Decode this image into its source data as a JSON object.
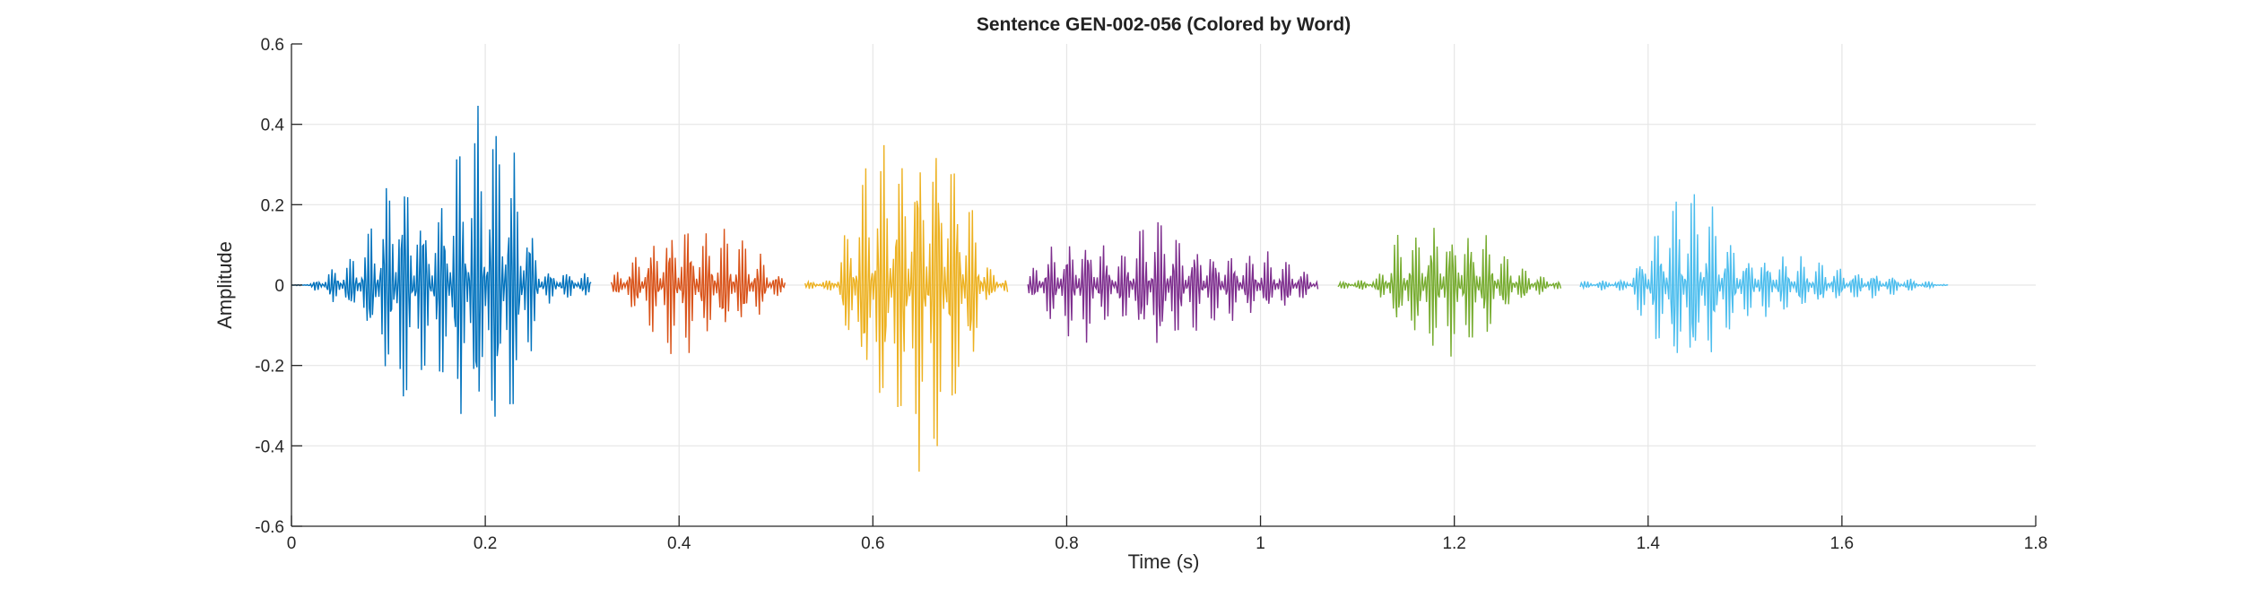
{
  "chart_data": {
    "type": "line",
    "title": "Sentence GEN-002-056 (Colored by Word)",
    "xlabel": "Time (s)",
    "ylabel": "Amplitude",
    "xlim": [
      0,
      1.8
    ],
    "ylim": [
      -0.6,
      0.6
    ],
    "xticks": [
      0,
      0.2,
      0.4,
      0.6,
      0.8,
      1,
      1.2,
      1.4,
      1.6,
      1.8
    ],
    "xtick_labels": [
      "0",
      "0.2",
      "0.4",
      "0.6",
      "0.8",
      "1",
      "1.2",
      "1.4",
      "1.6",
      "1.8"
    ],
    "yticks": [
      -0.6,
      -0.4,
      -0.2,
      0,
      0.2,
      0.4,
      0.6
    ],
    "ytick_labels": [
      "-0.6",
      "-0.4",
      "-0.2",
      "0",
      "0.2",
      "0.4",
      "0.6"
    ],
    "grid": true,
    "legend": "none",
    "series": [
      {
        "color": "#0072BD",
        "start": 0.0,
        "end": 0.31,
        "envelope": [
          [
            0.0,
            0.0
          ],
          [
            0.02,
            0.005
          ],
          [
            0.04,
            0.05
          ],
          [
            0.07,
            0.1
          ],
          [
            0.1,
            0.3
          ],
          [
            0.11,
            0.4
          ],
          [
            0.13,
            0.28
          ],
          [
            0.15,
            0.25
          ],
          [
            0.17,
            0.4
          ],
          [
            0.19,
            0.47
          ],
          [
            0.22,
            0.52
          ],
          [
            0.24,
            0.3
          ],
          [
            0.26,
            0.05
          ],
          [
            0.29,
            0.04
          ],
          [
            0.31,
            0.03
          ]
        ]
      },
      {
        "color": "#D95319",
        "start": 0.33,
        "end": 0.51,
        "envelope": [
          [
            0.33,
            0.02
          ],
          [
            0.35,
            0.08
          ],
          [
            0.38,
            0.16
          ],
          [
            0.4,
            0.2
          ],
          [
            0.42,
            0.18
          ],
          [
            0.44,
            0.16
          ],
          [
            0.46,
            0.15
          ],
          [
            0.48,
            0.1
          ],
          [
            0.5,
            0.04
          ],
          [
            0.51,
            0.02
          ]
        ]
      },
      {
        "color": "#EDB120",
        "start": 0.53,
        "end": 0.74,
        "envelope": [
          [
            0.53,
            0.01
          ],
          [
            0.56,
            0.02
          ],
          [
            0.58,
            0.25
          ],
          [
            0.6,
            0.38
          ],
          [
            0.63,
            0.45
          ],
          [
            0.66,
            0.52
          ],
          [
            0.68,
            0.43
          ],
          [
            0.7,
            0.28
          ],
          [
            0.72,
            0.05
          ],
          [
            0.74,
            0.02
          ]
        ]
      },
      {
        "color": "#7E2F8E",
        "start": 0.76,
        "end": 1.06,
        "envelope": [
          [
            0.76,
            0.03
          ],
          [
            0.78,
            0.1
          ],
          [
            0.8,
            0.14
          ],
          [
            0.83,
            0.15
          ],
          [
            0.85,
            0.08
          ],
          [
            0.87,
            0.15
          ],
          [
            0.9,
            0.22
          ],
          [
            0.92,
            0.14
          ],
          [
            0.96,
            0.1
          ],
          [
            1.0,
            0.09
          ],
          [
            1.03,
            0.07
          ],
          [
            1.06,
            0.02
          ]
        ]
      },
      {
        "color": "#77AC30",
        "start": 1.08,
        "end": 1.31,
        "envelope": [
          [
            1.08,
            0.01
          ],
          [
            1.12,
            0.02
          ],
          [
            1.14,
            0.14
          ],
          [
            1.17,
            0.18
          ],
          [
            1.2,
            0.19
          ],
          [
            1.23,
            0.16
          ],
          [
            1.26,
            0.07
          ],
          [
            1.29,
            0.03
          ],
          [
            1.31,
            0.01
          ]
        ]
      },
      {
        "color": "#4DBEEE",
        "start": 1.33,
        "end": 1.71,
        "envelope": [
          [
            1.33,
            0.01
          ],
          [
            1.38,
            0.02
          ],
          [
            1.4,
            0.15
          ],
          [
            1.43,
            0.27
          ],
          [
            1.45,
            0.29
          ],
          [
            1.47,
            0.2
          ],
          [
            1.5,
            0.1
          ],
          [
            1.55,
            0.08
          ],
          [
            1.6,
            0.05
          ],
          [
            1.65,
            0.03
          ],
          [
            1.69,
            0.01
          ],
          [
            1.71,
            0.0
          ]
        ]
      }
    ]
  }
}
